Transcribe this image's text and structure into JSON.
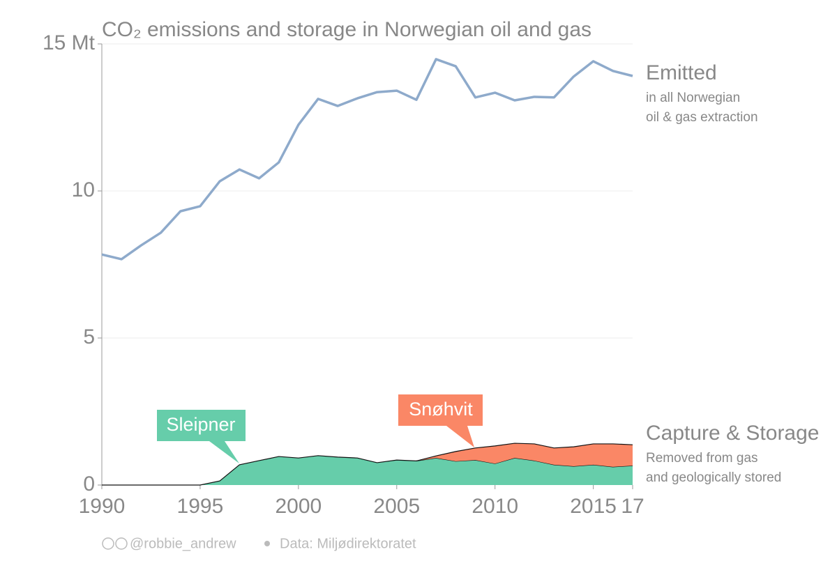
{
  "chart_data": {
    "type": "line-area",
    "title": "CO₂ emissions and storage in Norwegian oil and gas",
    "x": [
      1990,
      1991,
      1992,
      1993,
      1994,
      1995,
      1996,
      1997,
      1998,
      1999,
      2000,
      2001,
      2002,
      2003,
      2004,
      2005,
      2006,
      2007,
      2008,
      2009,
      2010,
      2011,
      2012,
      2013,
      2014,
      2015,
      2016,
      2017
    ],
    "xlim": [
      1990,
      2017
    ],
    "xticks": [
      1990,
      1995,
      2000,
      2005,
      2010,
      2015,
      {
        "value": 2017,
        "label": "17"
      }
    ],
    "ylim": [
      0,
      15
    ],
    "yticks": [
      0,
      5,
      10,
      {
        "value": 15,
        "label": "15 Mt"
      }
    ],
    "grid": true,
    "series": [
      {
        "name": "Emitted",
        "kind": "line",
        "color": "#8eaacb",
        "values": [
          7.84,
          7.68,
          8.15,
          8.58,
          9.31,
          9.48,
          10.33,
          10.73,
          10.43,
          10.97,
          12.25,
          13.13,
          12.89,
          13.15,
          13.36,
          13.41,
          13.1,
          14.48,
          14.24,
          13.18,
          13.34,
          13.08,
          13.2,
          13.18,
          13.89,
          14.41,
          14.08,
          13.91
        ]
      },
      {
        "name": "Sleipner",
        "kind": "area",
        "color": "#66cdaa",
        "values": [
          0,
          0,
          0,
          0,
          0,
          0,
          0.14,
          0.69,
          0.83,
          0.97,
          0.92,
          1.0,
          0.95,
          0.92,
          0.76,
          0.85,
          0.82,
          0.92,
          0.81,
          0.85,
          0.73,
          0.92,
          0.83,
          0.69,
          0.64,
          0.69,
          0.62,
          0.66
        ]
      },
      {
        "name": "Snøhvit",
        "kind": "area",
        "color": "#fa8766",
        "values": [
          null,
          null,
          null,
          null,
          null,
          null,
          null,
          null,
          null,
          null,
          null,
          null,
          null,
          null,
          null,
          null,
          0,
          0.07,
          0.33,
          0.41,
          0.6,
          0.5,
          0.57,
          0.57,
          0.66,
          0.71,
          0.78,
          0.71
        ]
      }
    ],
    "annotations": {
      "emitted": "Emitted",
      "emitted_note": [
        "in all Norwegian",
        "oil & gas extraction"
      ],
      "storage": "Capture & Storage",
      "storage_note": [
        "Removed from gas",
        "and geologically stored"
      ]
    },
    "credit": "@robbie_andrew",
    "source": "Data: Miljødirektoratet"
  }
}
